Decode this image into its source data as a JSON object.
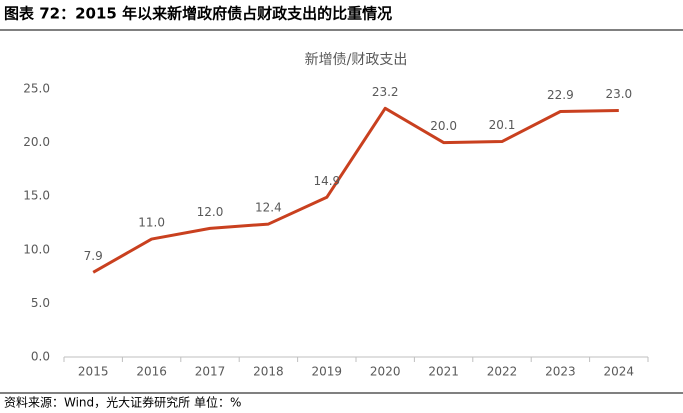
{
  "header": {
    "title": "图表 72：2015 年以来新增政府债占财政支出的比重情况"
  },
  "chart_data": {
    "type": "line",
    "title": "新增债/财政支出",
    "categories": [
      "2015",
      "2016",
      "2017",
      "2018",
      "2019",
      "2020",
      "2021",
      "2022",
      "2023",
      "2024"
    ],
    "series": [
      {
        "name": "新增债/财政支出",
        "color": "#c9401f",
        "values": [
          7.9,
          11.0,
          12.0,
          12.4,
          14.9,
          23.2,
          20.0,
          20.1,
          22.9,
          23.0
        ],
        "value_labels": [
          "7.9",
          "11.0",
          "12.0",
          "12.4",
          "14.9",
          "23.2",
          "20.0",
          "20.1",
          "22.9",
          "23.0"
        ]
      }
    ],
    "ylim": [
      0,
      25
    ],
    "yticks": [
      {
        "value": 0,
        "label": "0.0"
      },
      {
        "value": 5,
        "label": "5.0"
      },
      {
        "value": 10,
        "label": "10.0"
      },
      {
        "value": 15,
        "label": "15.0"
      },
      {
        "value": 20,
        "label": "20.0"
      },
      {
        "value": 25,
        "label": "25.0"
      }
    ],
    "grid": false
  },
  "footer": {
    "source": "资料来源：Wind，光大证券研究所 单位：%"
  }
}
